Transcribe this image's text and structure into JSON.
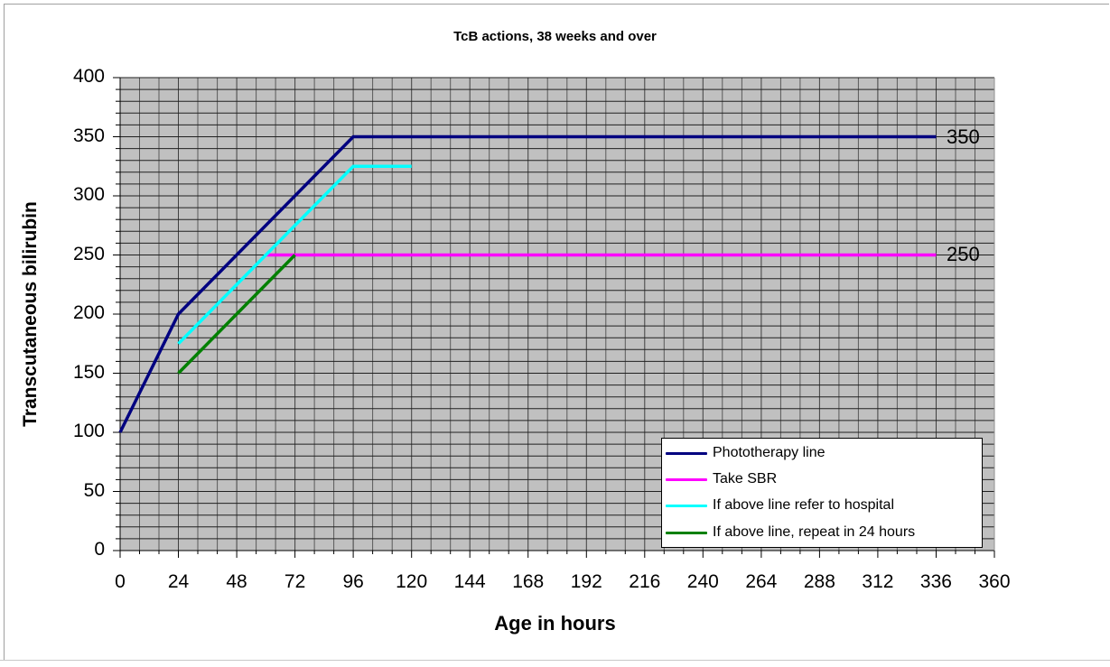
{
  "chart_data": {
    "type": "line",
    "title": "TcB actions, 38 weeks and over",
    "xlabel": "Age in hours",
    "ylabel": "Transcutaneous bilirubin",
    "xlim": [
      0,
      360
    ],
    "ylim": [
      0,
      400
    ],
    "x_ticks": [
      0,
      24,
      48,
      72,
      96,
      120,
      144,
      168,
      192,
      216,
      240,
      264,
      288,
      312,
      336,
      360
    ],
    "y_ticks": [
      0,
      50,
      100,
      150,
      200,
      250,
      300,
      350,
      400
    ],
    "grid": true,
    "grid_minor": {
      "x_step": 8,
      "y_step": 10
    },
    "legend_position": "lower right, inside plot",
    "series": [
      {
        "name": "Phototherapy line",
        "color": "#000080",
        "points": [
          [
            0,
            100
          ],
          [
            24,
            200
          ],
          [
            96,
            350
          ],
          [
            336,
            350
          ]
        ]
      },
      {
        "name": "Take SBR",
        "color": "#ff00ff",
        "points": [
          [
            60,
            250
          ],
          [
            336,
            250
          ]
        ]
      },
      {
        "name": "If above line refer to hospital",
        "color": "#00ffff",
        "points": [
          [
            24,
            175
          ],
          [
            96,
            325
          ],
          [
            120,
            325
          ]
        ]
      },
      {
        "name": "If above line, repeat in 24 hours",
        "color": "#008000",
        "points": [
          [
            24,
            150
          ],
          [
            72,
            250
          ]
        ]
      }
    ],
    "annotations": [
      {
        "text": "350",
        "x": 336,
        "y": 350
      },
      {
        "text": "250",
        "x": 336,
        "y": 250
      }
    ]
  },
  "labels": {
    "title": "TcB actions, 38 weeks and over",
    "xlabel": "Age in hours",
    "ylabel": "Transcutaneous bilirubin",
    "yticks": [
      "400",
      "350",
      "300",
      "250",
      "200",
      "150",
      "100",
      "50",
      "0"
    ],
    "xticks": [
      "0",
      "24",
      "48",
      "72",
      "96",
      "120",
      "144",
      "168",
      "192",
      "216",
      "240",
      "264",
      "288",
      "312",
      "336",
      "360"
    ],
    "end_350": "350",
    "end_250": "250"
  },
  "legend": [
    {
      "label": "Phototherapy line",
      "color": "#000080"
    },
    {
      "label": "Take SBR",
      "color": "#ff00ff"
    },
    {
      "label": "If above line refer to hospital",
      "color": "#00ffff"
    },
    {
      "label": "If above line, repeat in 24 hours",
      "color": "#008000"
    }
  ]
}
